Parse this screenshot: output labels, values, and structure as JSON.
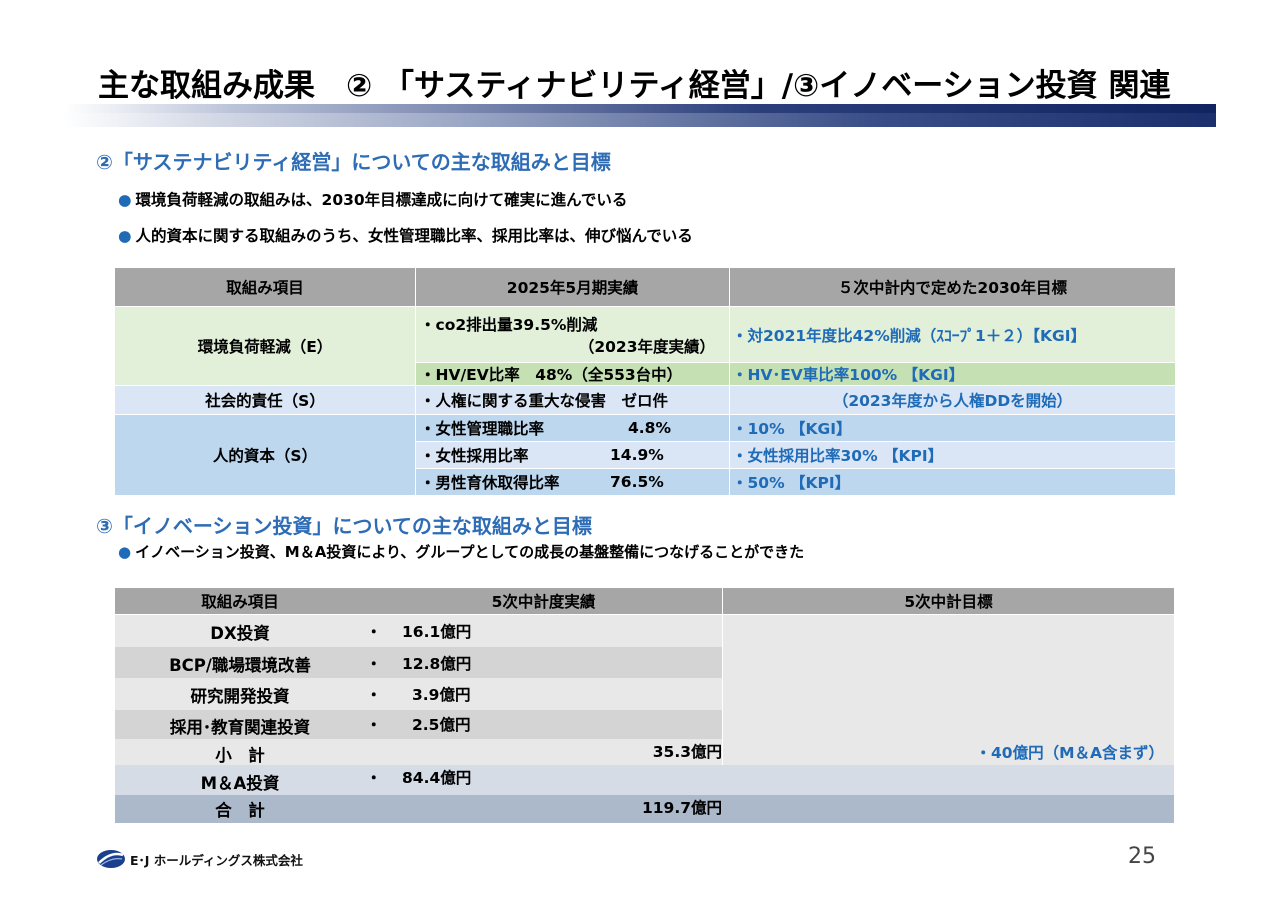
{
  "title": "主な取組み成果　② 「サスティナビリティ経営」/③イノベーション投資 関連",
  "section2": {
    "heading": "②「サステナビリティ経営」についての主な取組みと目標",
    "bullets": [
      "環境負荷軽減の取組みは、2030年目標達成に向けて確実に進んでいる",
      "人的資本に関する取組みのうち、女性管理職比率、採用比率は、伸び悩んでいる"
    ],
    "bullet_marker": "●",
    "table": {
      "headers": [
        "取組み項目",
        "2025年5月期実績",
        "５次中計内で定めた2030年目標"
      ],
      "env": {
        "label": "環境負荷軽減（E）",
        "r1_actual_a": "・co2排出量39.5%削減",
        "r1_actual_b": "（2023年度実績）",
        "r1_target": "・対2021年度比42%削減（ｽｺｰﾌﾟ1＋２）【KGI】",
        "r2_actual": "・HV/EV比率　48%（全553台中）",
        "r2_target": "・HV･EV車比率100% 【KGI】"
      },
      "social": {
        "label": "社会的責任（S）",
        "actual": "・人権に関する重大な侵害　ゼロ件",
        "target": "（2023年度から人権DDを開始）"
      },
      "human": {
        "label": "人的資本（S）",
        "rows": [
          {
            "actual_label": "・女性管理職比率",
            "actual_value": "4.8%",
            "target": "・10% 【KGI】"
          },
          {
            "actual_label": "・女性採用比率",
            "actual_value": "14.9%",
            "target": "・女性採用比率30% 【KPI】"
          },
          {
            "actual_label": "・男性育休取得比率",
            "actual_value": "76.5%",
            "target": "・50% 【KPI】"
          }
        ]
      }
    }
  },
  "section3": {
    "heading": "③「イノベーション投資」についての主な取組みと目標",
    "bullets": [
      "イノベーション投資、M＆A投資により、グループとしての成長の基盤整備につなげることができた"
    ],
    "table": {
      "headers": [
        "取組み項目",
        "5次中計度実績",
        "5次中計目標"
      ],
      "rows": [
        {
          "item": "DX投資",
          "marker": "・",
          "value": "16.1億円"
        },
        {
          "item": "BCP/職場環境改善",
          "marker": "・",
          "value": "12.8億円"
        },
        {
          "item": "研究開発投資",
          "marker": "・",
          "value": "3.9億円"
        },
        {
          "item": "採用･教育関連投資",
          "marker": "・",
          "value": "2.5億円"
        }
      ],
      "subtotal": {
        "item": "小　計",
        "value": "35.3億円"
      },
      "ma": {
        "item": "M＆A投資",
        "marker": "・",
        "value": "84.4億円"
      },
      "total": {
        "item": "合　計",
        "value": "119.7億円"
      },
      "target": "・40億円（M＆A含まず）"
    }
  },
  "footer": {
    "company": "E･J ホールディングス株式会社",
    "page": "25"
  },
  "colors": {
    "header_gray": "#a6a6a6",
    "green_light": "#e2efd9",
    "green_mid": "#c5e0b3",
    "blue_light": "#dae6f5",
    "blue_mid": "#bdd7ee",
    "accent_blue": "#1f6bb8"
  }
}
